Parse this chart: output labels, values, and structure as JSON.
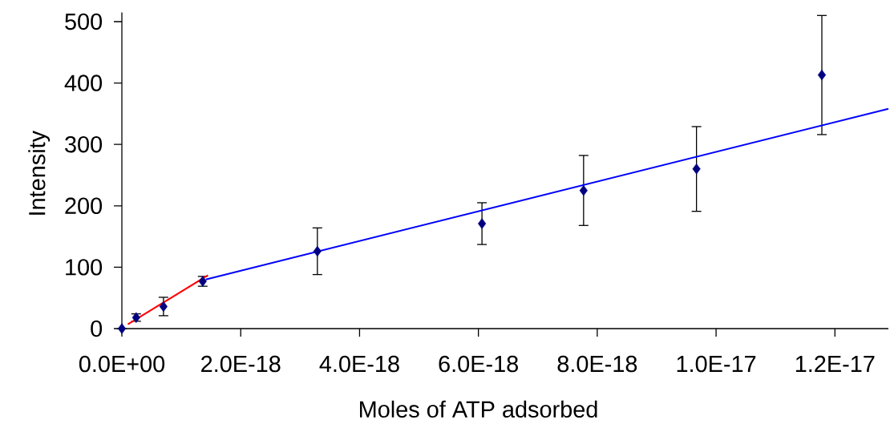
{
  "chart_data": {
    "type": "scatter",
    "xlabel": "Moles of ATP adsorbed",
    "ylabel": "Intensity",
    "xlim": [
      0,
      1.29e-17
    ],
    "ylim": [
      0,
      515
    ],
    "xticks": [
      {
        "value": 0,
        "label": "0.0E+00"
      },
      {
        "value": 2e-18,
        "label": "2.0E-18"
      },
      {
        "value": 4e-18,
        "label": "4.0E-18"
      },
      {
        "value": 6e-18,
        "label": "6.0E-18"
      },
      {
        "value": 8e-18,
        "label": "8.0E-18"
      },
      {
        "value": 1e-17,
        "label": "1.0E-17"
      },
      {
        "value": 1.2e-17,
        "label": "1.2E-17"
      }
    ],
    "yticks": [
      0,
      100,
      200,
      300,
      400,
      500
    ],
    "series": [
      {
        "color": "#000080",
        "marker": "diamond",
        "x": [
          0,
          2.4e-19,
          7e-19,
          1.36e-18,
          3.29e-18,
          6.06e-18,
          7.77e-18,
          9.67e-18,
          1.178e-17
        ],
        "values": [
          0,
          18,
          36,
          77,
          126,
          171,
          225,
          260,
          413
        ],
        "errors": [
          null,
          6,
          15,
          8,
          38,
          34,
          57,
          69,
          97
        ]
      },
      {
        "type": "line",
        "color": "#ff0000",
        "x": [
          1e-19,
          1.45e-18
        ],
        "values": [
          7,
          87
        ]
      },
      {
        "type": "line",
        "color": "#0000ff",
        "x": [
          1.41e-18,
          1.29e-17
        ],
        "values": [
          80,
          358
        ]
      }
    ]
  }
}
